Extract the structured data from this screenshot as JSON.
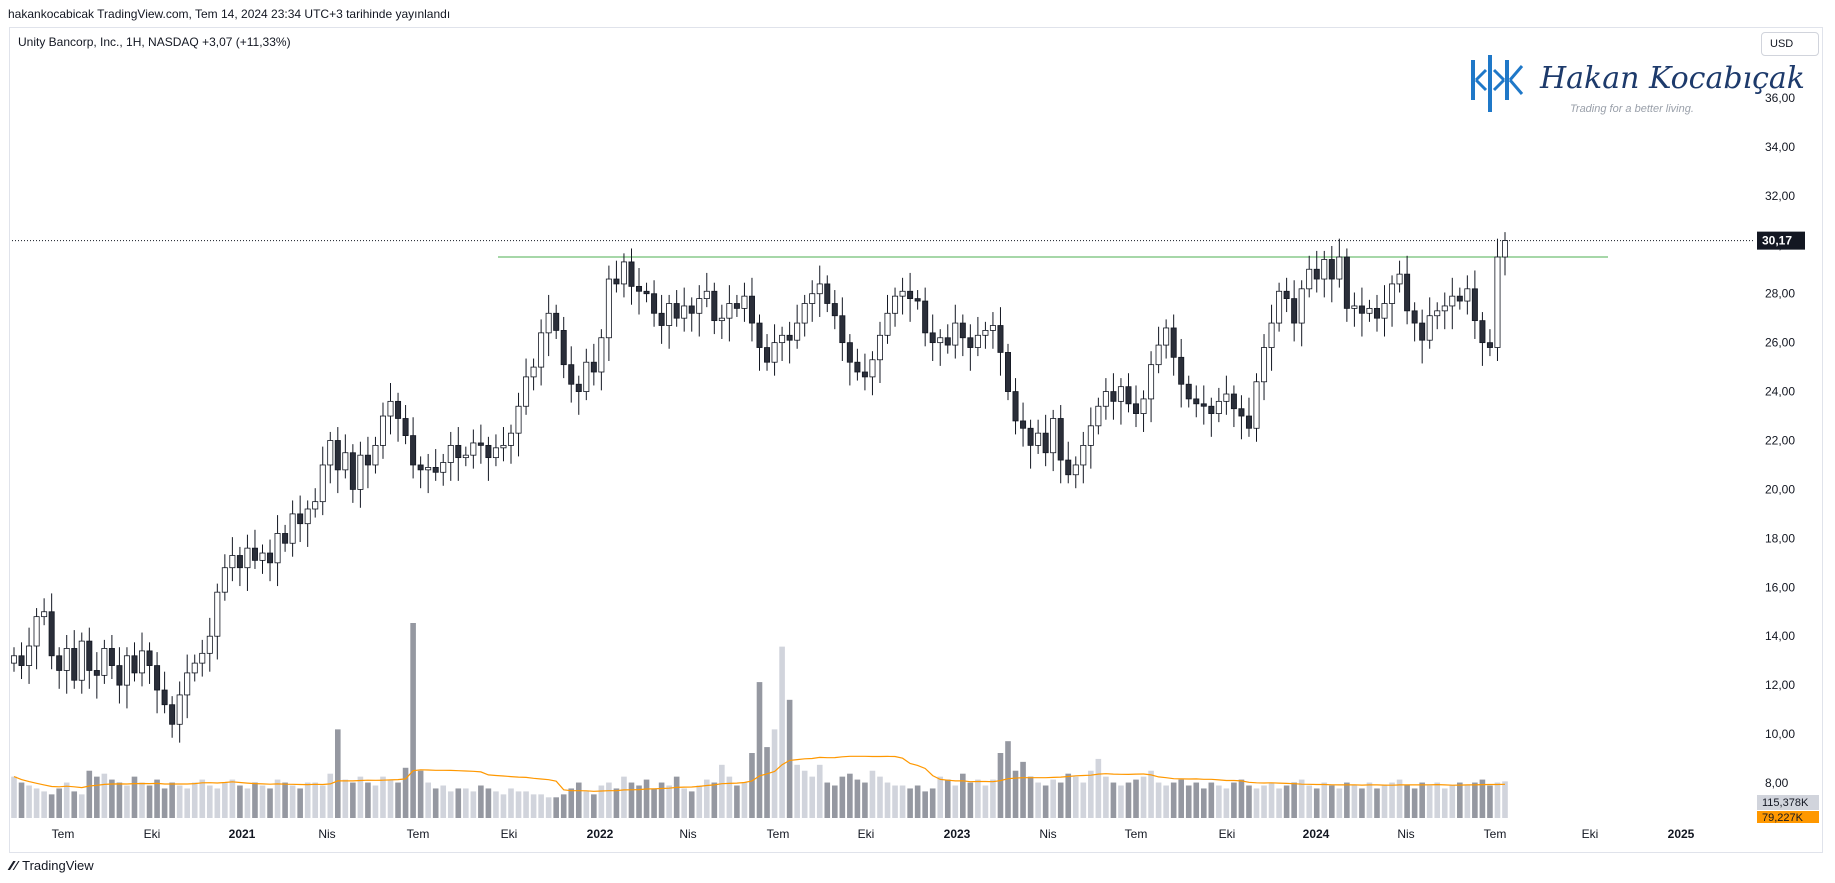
{
  "caption": "hakankocabicak TradingView.com, Tem 14, 2024 23:34 UTC+3 tarihinde yayınlandı",
  "symbol_info": "Unity Bancorp, Inc., 1H, NASDAQ  +3,07 (+11,33%)",
  "currency_button": "USD",
  "watermark": {
    "name": "Hakan Kocabıçak",
    "tagline": "Trading for a better living."
  },
  "footer_brand": "TradingView",
  "colors": {
    "up": "#ffffff",
    "down": "#2a2e39",
    "outline": "#131722",
    "resistance": "#4caf50",
    "volume_up": "#d1d4dc",
    "volume_down": "#9598a1",
    "volume_ma": "#ff9800",
    "price_tag": "#131722"
  },
  "chart_data": {
    "type": "candlestick",
    "ylim": [
      8,
      38
    ],
    "y_ticks": [
      "8,00",
      "10,00",
      "12,00",
      "14,00",
      "16,00",
      "18,00",
      "20,00",
      "22,00",
      "24,00",
      "26,00",
      "28,00",
      "30,00",
      "32,00",
      "34,00",
      "36,00"
    ],
    "x_ticks": [
      "Tem",
      "Eki",
      "2021",
      "Nis",
      "Tem",
      "Eki",
      "2022",
      "Nis",
      "Tem",
      "Eki",
      "2023",
      "Nis",
      "Tem",
      "Eki",
      "2024",
      "Nis",
      "Tem",
      "Eki",
      "2025"
    ],
    "last_price": 30.17,
    "last_price_label": "30,17",
    "resistance_level": 29.5,
    "volume_label": "115,378K",
    "volume_ma_label": "79,227K",
    "closes": [
      13.2,
      12.8,
      13.6,
      14.8,
      15.0,
      13.2,
      12.6,
      13.5,
      12.2,
      13.8,
      12.6,
      12.4,
      13.5,
      12.8,
      12.0,
      13.2,
      12.5,
      13.4,
      12.8,
      11.8,
      11.2,
      10.4,
      11.6,
      12.5,
      12.9,
      13.3,
      14.0,
      15.8,
      16.8,
      17.3,
      16.8,
      17.6,
      17.1,
      17.4,
      17.0,
      18.2,
      17.8,
      19.0,
      18.6,
      19.2,
      19.5,
      21.0,
      22.0,
      20.8,
      21.5,
      20.0,
      21.4,
      21.0,
      21.8,
      23.0,
      23.6,
      22.9,
      22.2,
      21.0,
      20.8,
      20.9,
      20.7,
      21.1,
      21.8,
      21.3,
      21.4,
      21.9,
      21.8,
      21.3,
      21.7,
      21.8,
      22.3,
      23.4,
      24.6,
      25.0,
      26.4,
      27.2,
      26.5,
      25.1,
      24.3,
      24.0,
      25.2,
      24.8,
      26.2,
      28.6,
      28.4,
      29.3,
      28.3,
      28.1,
      28.0,
      27.2,
      26.7,
      27.6,
      27.0,
      27.5,
      27.2,
      27.8,
      28.1,
      26.9,
      27.0,
      27.6,
      27.4,
      27.9,
      26.8,
      25.8,
      25.2,
      26.0,
      26.3,
      26.1,
      26.8,
      27.6,
      28.0,
      28.4,
      27.6,
      27.1,
      26.0,
      25.2,
      24.8,
      24.6,
      25.3,
      26.3,
      27.2,
      27.9,
      28.1,
      27.8,
      27.7,
      26.4,
      26.0,
      26.2,
      25.9,
      26.8,
      26.2,
      25.8,
      26.3,
      26.5,
      26.7,
      25.6,
      24.0,
      22.8,
      22.5,
      21.8,
      22.3,
      21.5,
      22.9,
      21.2,
      20.6,
      21.0,
      21.8,
      22.6,
      23.4,
      24.0,
      23.6,
      24.2,
      23.5,
      23.1,
      23.7,
      25.1,
      25.9,
      26.6,
      25.4,
      24.3,
      23.7,
      23.5,
      23.4,
      23.1,
      23.6,
      23.9,
      23.3,
      23.0,
      22.5,
      24.4,
      25.8,
      26.8,
      28.1,
      27.8,
      26.8,
      28.2,
      29.0,
      28.6,
      29.4,
      28.6,
      29.5,
      27.4,
      27.5,
      27.2,
      27.4,
      27.0,
      27.6,
      28.4,
      28.8,
      27.3,
      26.8,
      26.1,
      27.1,
      27.3,
      27.5,
      27.9,
      27.7,
      28.2,
      26.9,
      26.0,
      25.8,
      29.5,
      30.17
    ],
    "volumes": [
      70,
      60,
      55,
      50,
      45,
      40,
      50,
      60,
      45,
      40,
      80,
      70,
      75,
      65,
      60,
      55,
      70,
      60,
      55,
      65,
      50,
      60,
      55,
      50,
      60,
      65,
      55,
      50,
      60,
      65,
      55,
      50,
      60,
      55,
      50,
      65,
      60,
      55,
      50,
      60,
      60,
      55,
      75,
      150,
      65,
      60,
      70,
      60,
      55,
      70,
      65,
      60,
      85,
      330,
      80,
      60,
      50,
      55,
      45,
      50,
      50,
      45,
      55,
      50,
      45,
      40,
      50,
      45,
      45,
      40,
      40,
      35,
      35,
      40,
      50,
      60,
      45,
      40,
      55,
      60,
      50,
      70,
      60,
      55,
      65,
      50,
      60,
      55,
      70,
      50,
      45,
      55,
      65,
      60,
      90,
      70,
      55,
      60,
      110,
      230,
      120,
      150,
      290,
      200,
      90,
      80,
      70,
      90,
      60,
      55,
      70,
      75,
      65,
      60,
      80,
      70,
      60,
      55,
      55,
      50,
      55,
      45,
      50,
      70,
      65,
      55,
      75,
      60,
      65,
      55,
      65,
      110,
      130,
      80,
      95,
      70,
      60,
      55,
      65,
      60,
      75,
      70,
      60,
      80,
      100,
      70,
      60,
      55,
      60,
      65,
      70,
      80,
      60,
      55,
      60,
      65,
      55,
      60,
      50,
      60,
      55,
      50,
      60,
      65,
      55,
      50,
      55,
      60,
      50,
      55,
      60,
      65,
      55,
      50,
      60,
      55,
      50,
      60,
      55,
      50,
      60,
      50,
      55,
      60,
      65,
      55,
      50,
      60,
      55,
      60,
      50,
      55,
      60,
      55,
      60,
      65,
      55,
      60,
      62,
      70,
      75
    ]
  }
}
